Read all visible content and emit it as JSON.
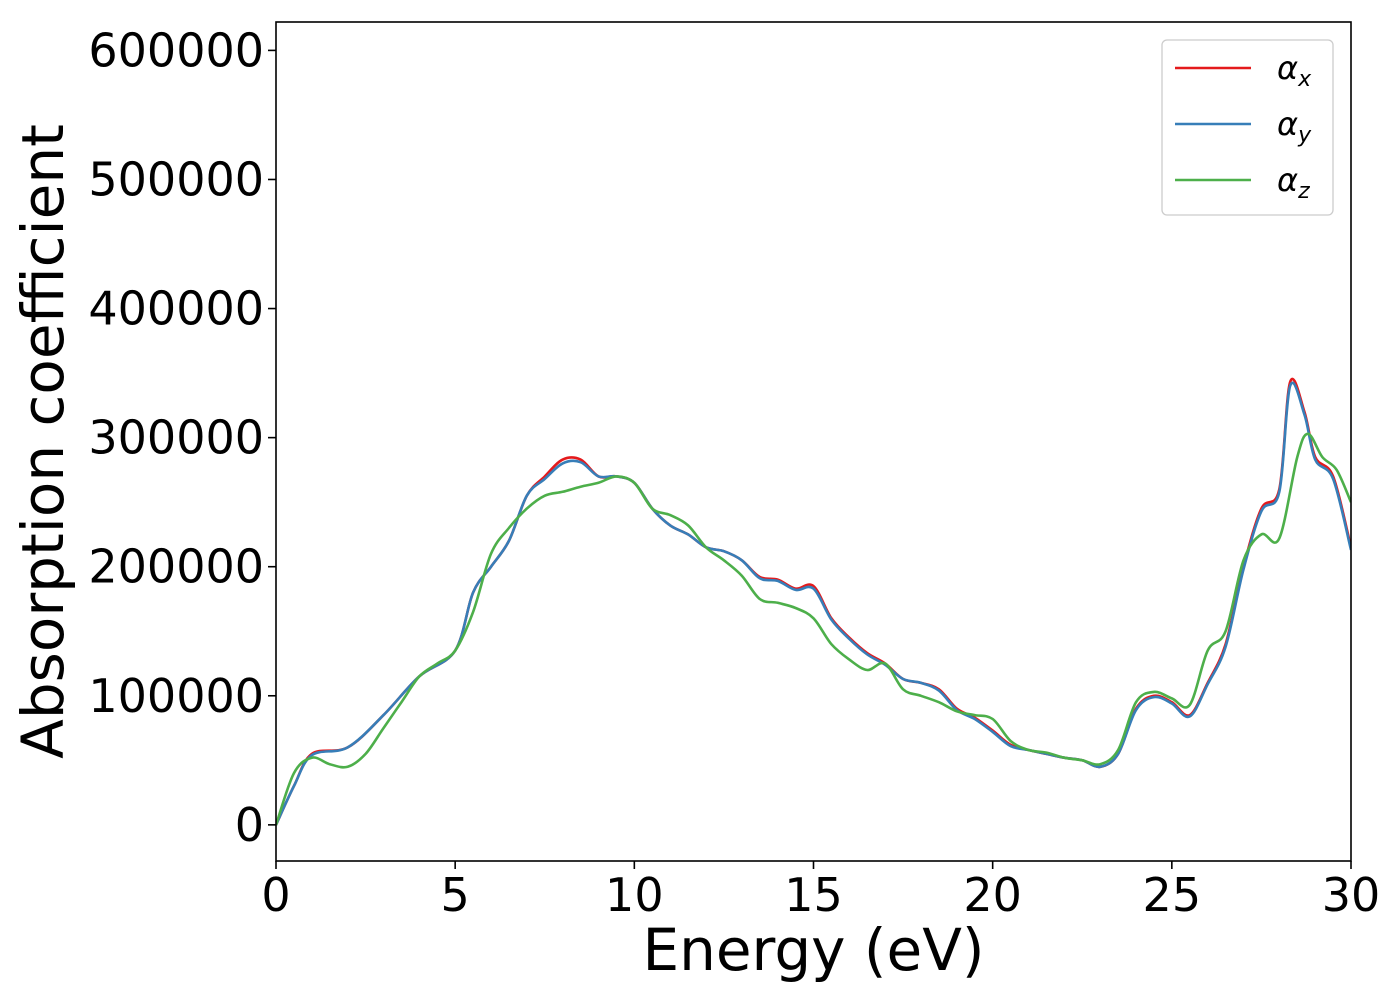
{
  "chart_data": {
    "type": "line",
    "title": "",
    "xlabel": "Energy (eV)",
    "ylabel": "Absorption coefficient",
    "xlim": [
      0,
      30
    ],
    "ylim": [
      -28000,
      622000
    ],
    "xticks": [
      0,
      5,
      10,
      15,
      20,
      25,
      30
    ],
    "yticks": [
      0,
      100000,
      200000,
      300000,
      400000,
      500000,
      600000
    ],
    "grid": false,
    "legend_position": "top-right",
    "series": [
      {
        "name": "αx",
        "legend_base": "α",
        "legend_sub": "x",
        "color": "#e41a1c",
        "x": [
          0,
          0.5,
          1,
          2,
          3,
          4,
          5,
          5.5,
          6,
          6.5,
          7,
          7.5,
          8,
          8.5,
          9,
          9.5,
          10,
          10.5,
          11,
          11.5,
          12,
          12.5,
          13,
          13.5,
          14,
          14.5,
          15,
          15.5,
          16,
          16.5,
          17,
          17.5,
          18,
          18.5,
          19,
          19.5,
          20,
          20.5,
          21,
          21.5,
          22,
          22.5,
          23,
          23.5,
          24,
          24.5,
          25,
          25.5,
          26,
          26.5,
          27,
          27.5,
          28,
          28.3,
          28.7,
          29,
          29.5,
          30
        ],
        "y": [
          0,
          30000,
          55000,
          60000,
          85000,
          115000,
          135000,
          180000,
          200000,
          220000,
          255000,
          270000,
          283000,
          283000,
          270000,
          270000,
          265000,
          245000,
          232000,
          225000,
          215000,
          212000,
          205000,
          192000,
          190000,
          183000,
          185000,
          160000,
          145000,
          133000,
          125000,
          113000,
          110000,
          105000,
          90000,
          83000,
          73000,
          62000,
          58000,
          55000,
          52000,
          50000,
          45000,
          55000,
          90000,
          100000,
          95000,
          85000,
          110000,
          140000,
          200000,
          245000,
          260000,
          343000,
          320000,
          285000,
          270000,
          215000
        ]
      },
      {
        "name": "αy",
        "legend_base": "α",
        "legend_sub": "y",
        "color": "#377eb8",
        "x": [
          0,
          0.5,
          1,
          2,
          3,
          4,
          5,
          5.5,
          6,
          6.5,
          7,
          7.5,
          8,
          8.5,
          9,
          9.5,
          10,
          10.5,
          11,
          11.5,
          12,
          12.5,
          13,
          13.5,
          14,
          14.5,
          15,
          15.5,
          16,
          16.5,
          17,
          17.5,
          18,
          18.5,
          19,
          19.5,
          20,
          20.5,
          21,
          21.5,
          22,
          22.5,
          23,
          23.5,
          24,
          24.5,
          25,
          25.5,
          26,
          26.5,
          27,
          27.5,
          28,
          28.3,
          28.7,
          29,
          29.5,
          30
        ],
        "y": [
          0,
          30000,
          54000,
          60000,
          85000,
          115000,
          135000,
          180000,
          200000,
          220000,
          255000,
          268000,
          280000,
          281000,
          270000,
          270000,
          265000,
          245000,
          232000,
          225000,
          215000,
          212000,
          205000,
          191000,
          189000,
          182000,
          183000,
          159000,
          144000,
          132000,
          124000,
          113000,
          110000,
          104000,
          89000,
          82000,
          72000,
          61000,
          58000,
          55000,
          52000,
          50000,
          45000,
          55000,
          89000,
          99000,
          94000,
          84000,
          109000,
          138000,
          198000,
          243000,
          258000,
          340000,
          318000,
          283000,
          268000,
          213000
        ]
      },
      {
        "name": "αz",
        "legend_base": "α",
        "legend_sub": "z",
        "color": "#4daf4a",
        "x": [
          0,
          0.5,
          1,
          1.5,
          2,
          2.5,
          3,
          3.5,
          4,
          4.5,
          5,
          5.5,
          6,
          6.5,
          7,
          7.5,
          8,
          8.5,
          9,
          9.5,
          10,
          10.5,
          11,
          11.5,
          12,
          12.5,
          13,
          13.5,
          14,
          14.5,
          15,
          15.5,
          16,
          16.5,
          17,
          17.5,
          18,
          18.5,
          19,
          19.5,
          20,
          20.5,
          21,
          21.5,
          22,
          22.5,
          23,
          23.5,
          24,
          24.5,
          25,
          25.5,
          26,
          26.5,
          27,
          27.5,
          28,
          28.5,
          28.8,
          29.2,
          29.6,
          30
        ],
        "y": [
          0,
          40000,
          52000,
          47000,
          45000,
          55000,
          75000,
          95000,
          115000,
          125000,
          135000,
          165000,
          210000,
          230000,
          245000,
          255000,
          258000,
          262000,
          265000,
          270000,
          265000,
          245000,
          240000,
          232000,
          215000,
          205000,
          193000,
          175000,
          172000,
          168000,
          160000,
          140000,
          128000,
          120000,
          125000,
          105000,
          100000,
          95000,
          88000,
          85000,
          82000,
          65000,
          58000,
          56000,
          52000,
          50000,
          47000,
          58000,
          95000,
          103000,
          98000,
          93000,
          135000,
          150000,
          205000,
          225000,
          222000,
          285000,
          303000,
          285000,
          275000,
          250000
        ]
      }
    ]
  }
}
